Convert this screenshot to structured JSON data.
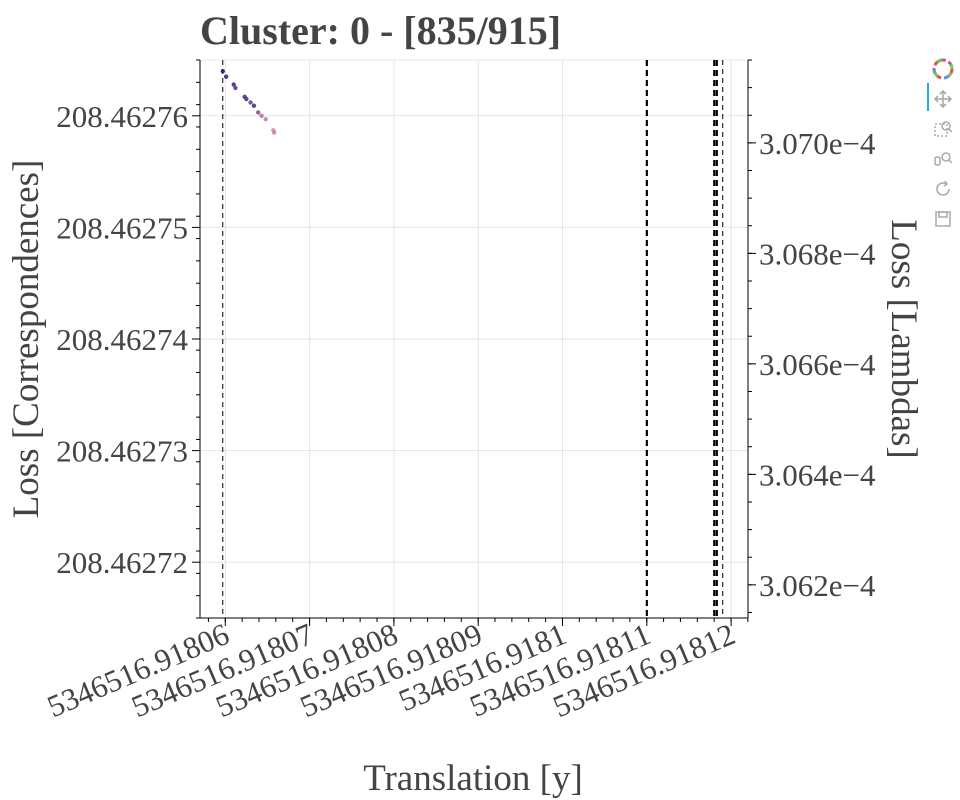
{
  "chart_data": {
    "type": "scatter",
    "title": "Cluster: 0 - [835/915]",
    "xlabel": "Translation [y]",
    "ylabel": "Loss [Correspondences]",
    "y2label": "Loss [Lambdas]",
    "xlim": [
      5346516.918057,
      5346516.918122
    ],
    "ylim": [
      208.462715,
      208.462765
    ],
    "y2lim": [
      0.00030614,
      0.00030715
    ],
    "x_ticks": [
      {
        "value": 5346516.91806,
        "label": "5346516.91806"
      },
      {
        "value": 5346516.91807,
        "label": "5346516.91807"
      },
      {
        "value": 5346516.91808,
        "label": "5346516.91808"
      },
      {
        "value": 5346516.91809,
        "label": "5346516.91809"
      },
      {
        "value": 5346516.9181,
        "label": "5346516.9181"
      },
      {
        "value": 5346516.91811,
        "label": "5346516.91811"
      },
      {
        "value": 5346516.91812,
        "label": "5346516.91812"
      }
    ],
    "y_ticks": [
      {
        "value": 208.46276,
        "label": "208.46276"
      },
      {
        "value": 208.46275,
        "label": "208.46275"
      },
      {
        "value": 208.46274,
        "label": "208.46274"
      },
      {
        "value": 208.46273,
        "label": "208.46273"
      },
      {
        "value": 208.46272,
        "label": "208.46272"
      }
    ],
    "y2_ticks": [
      {
        "value": 0.000307,
        "label": "3.070e−4"
      },
      {
        "value": 0.0003068,
        "label": "3.068e−4"
      },
      {
        "value": 0.0003066,
        "label": "3.066e−4"
      },
      {
        "value": 0.0003064,
        "label": "3.064e−4"
      },
      {
        "value": 0.0003062,
        "label": "3.062e−4"
      }
    ],
    "vlines": [
      {
        "x": 5346516.9180597,
        "style": "thin-dashed"
      },
      {
        "x": 5346516.91811,
        "style": "dashed"
      },
      {
        "x": 5346516.918118,
        "style": "dashed"
      },
      {
        "x": 5346516.9181183,
        "style": "dashed"
      },
      {
        "x": 5346516.918119,
        "style": "thin-dashed"
      }
    ],
    "points": [
      {
        "x": 5346516.9180597,
        "y": 208.462764,
        "color": "#1a1a5e"
      },
      {
        "x": 5346516.9180601,
        "y": 208.4627635,
        "color": "#2d1a6e"
      },
      {
        "x": 5346516.918061,
        "y": 208.4627628,
        "color": "#3b1f7a"
      },
      {
        "x": 5346516.9180612,
        "y": 208.4627625,
        "color": "#5a2a86"
      },
      {
        "x": 5346516.9180623,
        "y": 208.4627617,
        "color": "#4a2a80"
      },
      {
        "x": 5346516.9180625,
        "y": 208.4627615,
        "color": "#2a3a8c"
      },
      {
        "x": 5346516.918063,
        "y": 208.4627612,
        "color": "#6a3a8c"
      },
      {
        "x": 5346516.9180634,
        "y": 208.4627609,
        "color": "#3a2a7c"
      },
      {
        "x": 5346516.9180639,
        "y": 208.4627603,
        "color": "#8a4a8a"
      },
      {
        "x": 5346516.9180643,
        "y": 208.46276,
        "color": "#b06a90"
      },
      {
        "x": 5346516.9180648,
        "y": 208.4627597,
        "color": "#c47a98"
      },
      {
        "x": 5346516.9180657,
        "y": 208.4627587,
        "color": "#d08aa0"
      },
      {
        "x": 5346516.9180658,
        "y": 208.4627585,
        "color": "#c880a0"
      }
    ],
    "grid": true
  },
  "toolbar": {
    "icons": [
      "bokeh-logo-icon",
      "pan-icon",
      "box-zoom-icon",
      "wheel-zoom-icon",
      "reset-icon",
      "save-icon"
    ]
  }
}
